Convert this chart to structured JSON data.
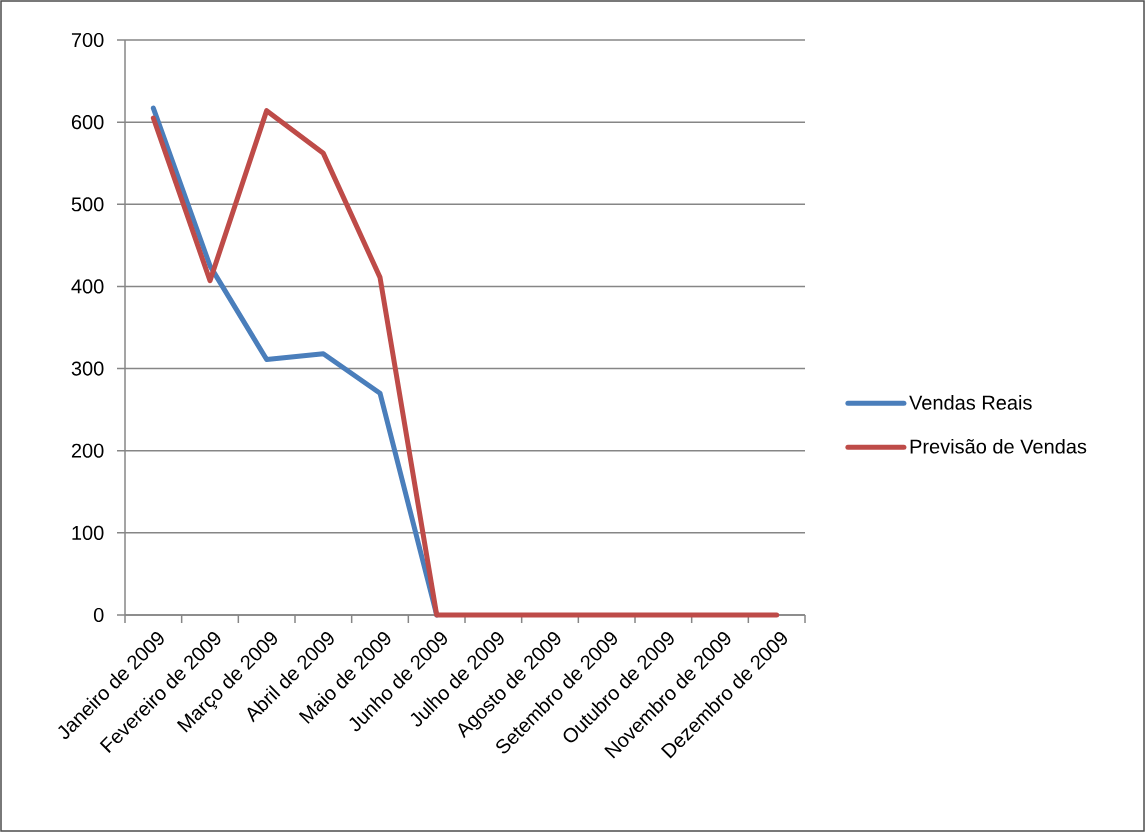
{
  "chart_data": {
    "type": "line",
    "categories": [
      "Janeiro de 2009",
      "Fevereiro de 2009",
      "Março de 2009",
      "Abril de 2009",
      "Maio de 2009",
      "Junho de 2009",
      "Julho de 2009",
      "Agosto de 2009",
      "Setembro de 2009",
      "Outubro de 2009",
      "Novembro de 2009",
      "Dezembro de 2009"
    ],
    "series": [
      {
        "name": "Vendas Reais",
        "color": "#4a7ebb",
        "values": [
          617,
          425,
          311,
          318,
          270,
          0,
          null,
          null,
          null,
          null,
          null,
          null
        ]
      },
      {
        "name": "Previsão de Vendas",
        "color": "#be4b48",
        "values": [
          605,
          407,
          614,
          562,
          411,
          0,
          0,
          0,
          0,
          0,
          0,
          0
        ]
      }
    ],
    "ylim": [
      0,
      700
    ],
    "yticks": [
      0,
      100,
      200,
      300,
      400,
      500,
      600,
      700
    ],
    "grid": "y",
    "legend": "right",
    "marker": "none",
    "line_style": "solid"
  }
}
